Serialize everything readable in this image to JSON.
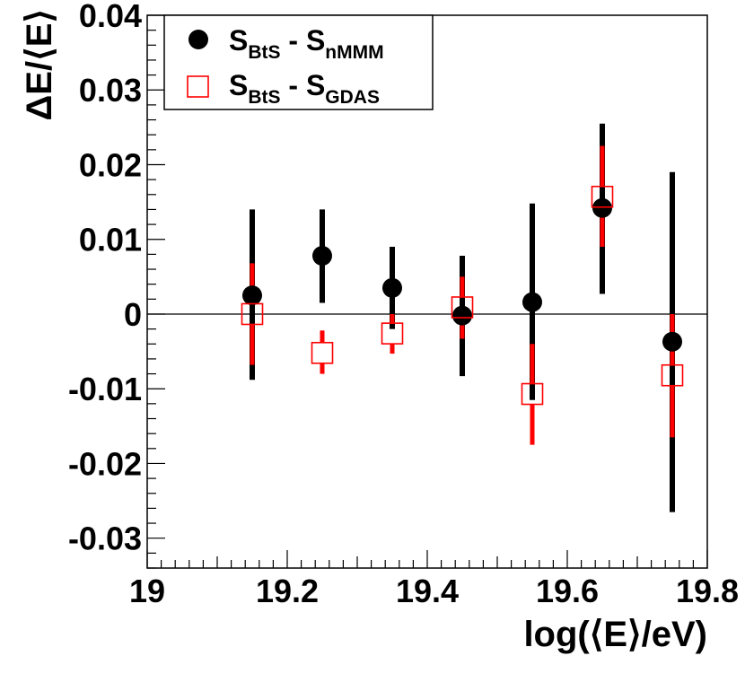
{
  "chart_data": {
    "type": "scatter",
    "xlabel": "log(⟨E⟩/eV)",
    "ylabel": "ΔE/⟨E⟩",
    "xlim": [
      19,
      19.8
    ],
    "ylim": [
      -0.034,
      0.04
    ],
    "xticks": [
      19,
      19.2,
      19.4,
      19.6,
      19.8
    ],
    "xtick_labels": [
      "19",
      "19.2",
      "19.4",
      "19.6",
      "19.8"
    ],
    "yticks": [
      -0.03,
      -0.02,
      -0.01,
      0,
      0.01,
      0.02,
      0.03,
      0.04
    ],
    "ytick_labels": [
      "-0.03",
      "-0.02",
      "-0.01",
      "0",
      "0.01",
      "0.02",
      "0.03",
      "0.04"
    ],
    "zero_line": true,
    "grid": false,
    "legend_position": "top-left",
    "series": [
      {
        "name_main": "S",
        "name_sub1": "BtS",
        "name_mid": " - S",
        "name_sub2": "nMMM",
        "marker": "filled-circle",
        "color": "#000000",
        "points": [
          {
            "x": 19.15,
            "y": 0.0025,
            "ylo": -0.0088,
            "yhi": 0.014
          },
          {
            "x": 19.25,
            "y": 0.0078,
            "ylo": 0.0015,
            "yhi": 0.014
          },
          {
            "x": 19.35,
            "y": 0.0035,
            "ylo": -0.002,
            "yhi": 0.009
          },
          {
            "x": 19.45,
            "y": -0.0002,
            "ylo": -0.0083,
            "yhi": 0.0078
          },
          {
            "x": 19.55,
            "y": 0.0016,
            "ylo": -0.0115,
            "yhi": 0.0148
          },
          {
            "x": 19.65,
            "y": 0.0142,
            "ylo": 0.0027,
            "yhi": 0.0255
          },
          {
            "x": 19.75,
            "y": -0.0037,
            "ylo": -0.0265,
            "yhi": 0.019
          }
        ]
      },
      {
        "name_main": "S",
        "name_sub1": "BtS",
        "name_mid": " - S",
        "name_sub2": "GDAS",
        "marker": "open-square",
        "color": "#ff0000",
        "points": [
          {
            "x": 19.15,
            "y": 0.0,
            "ylo": -0.0068,
            "yhi": 0.0068
          },
          {
            "x": 19.25,
            "y": -0.0052,
            "ylo": -0.008,
            "yhi": -0.0022
          },
          {
            "x": 19.35,
            "y": -0.0026,
            "ylo": -0.0053,
            "yhi": 0.0
          },
          {
            "x": 19.45,
            "y": 0.0009,
            "ylo": -0.0033,
            "yhi": 0.005
          },
          {
            "x": 19.55,
            "y": -0.0107,
            "ylo": -0.0175,
            "yhi": -0.004
          },
          {
            "x": 19.65,
            "y": 0.0157,
            "ylo": 0.009,
            "yhi": 0.0225
          },
          {
            "x": 19.75,
            "y": -0.0082,
            "ylo": -0.0165,
            "yhi": 0.0
          }
        ]
      }
    ]
  }
}
